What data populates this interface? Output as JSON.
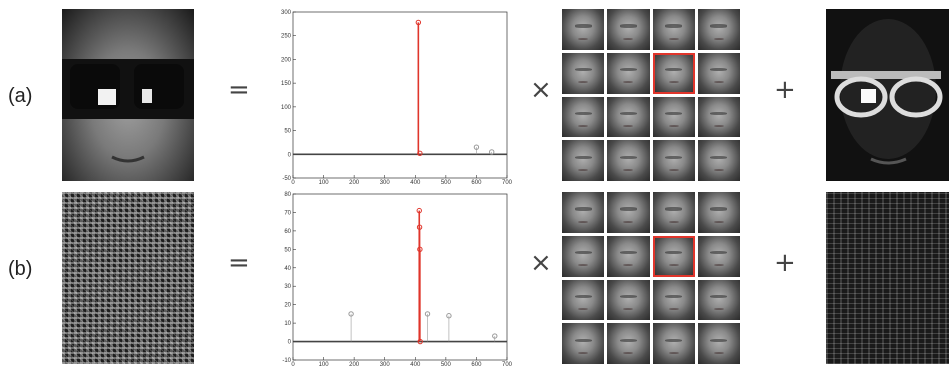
{
  "rows": [
    {
      "label": "(a)"
    },
    {
      "label": "(b)"
    }
  ],
  "operators": {
    "equals": "=",
    "times": "×",
    "plus": "+"
  },
  "chart_data": [
    {
      "type": "scatter",
      "xlim": [
        0,
        700
      ],
      "ylim": [
        -50,
        300
      ],
      "xticks": [
        0,
        100,
        200,
        300,
        400,
        500,
        600,
        700
      ],
      "yticks": [
        -50,
        0,
        50,
        100,
        150,
        200,
        250,
        300
      ],
      "series": [
        {
          "color": "#e0352b",
          "x": [
            410,
            415
          ],
          "y": [
            278,
            2
          ]
        },
        {
          "color": "#999999",
          "x": [
            600,
            650
          ],
          "y": [
            15,
            5
          ]
        }
      ]
    },
    {
      "type": "scatter",
      "xlim": [
        0,
        700
      ],
      "ylim": [
        -10,
        80
      ],
      "xticks": [
        0,
        100,
        200,
        300,
        400,
        500,
        600,
        700
      ],
      "yticks": [
        -10,
        0,
        10,
        20,
        30,
        40,
        50,
        60,
        70,
        80
      ],
      "series": [
        {
          "color": "#e0352b",
          "x": [
            413,
            414,
            415,
            416
          ],
          "y": [
            71,
            62,
            50,
            0
          ]
        },
        {
          "color": "#999999",
          "x": [
            190,
            440,
            510,
            660
          ],
          "y": [
            15,
            15,
            14,
            3
          ]
        }
      ]
    }
  ]
}
